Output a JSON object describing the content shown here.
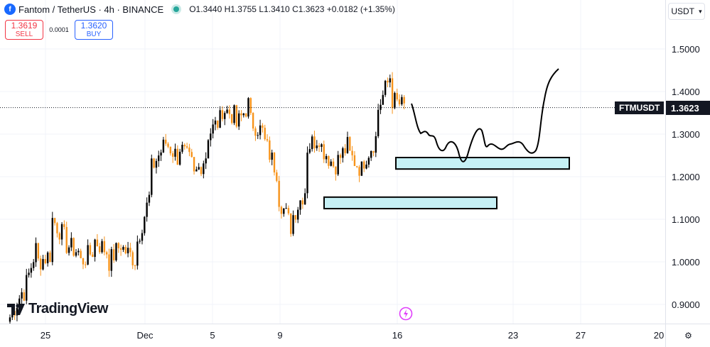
{
  "header": {
    "symbol_title": "Fantom / TetherUS · 4h · BINANCE",
    "logo_letter": "f",
    "ohlc": {
      "open": "O1.3440",
      "high": "H1.3755",
      "low": "L1.3410",
      "close": "C1.3623",
      "change": "+0.0182 (+1.35%)"
    }
  },
  "trade": {
    "sell_price": "1.3619",
    "sell_label": "SELL",
    "spread": "0.0001",
    "buy_price": "1.3620",
    "buy_label": "BUY"
  },
  "price_scale": {
    "currency": "USDT"
  },
  "last_price": {
    "symbol": "FTMUSDT",
    "value": "1.3623"
  },
  "branding": {
    "name": "TradingView"
  },
  "colors": {
    "up": "#000000",
    "down": "#f7931a",
    "zone_fill": "#c6f0f5",
    "accent": "#2962ff"
  },
  "chart_data": {
    "type": "candlestick",
    "symbol": "FTMUSDT",
    "interval": "4h",
    "y_ticks": [
      "1.5000",
      "1.4000",
      "1.3000",
      "1.2000",
      "1.1000",
      "1.0000",
      "0.9000"
    ],
    "y_range": [
      0.86,
      1.55
    ],
    "x_ticks": [
      "25",
      "Dec",
      "5",
      "9",
      "16",
      "23",
      "27",
      "20"
    ],
    "series_close_approx": [
      [
        0.87,
        0.94
      ],
      [
        0.93,
        1.05
      ],
      [
        1.0,
        1.02
      ],
      [
        1.1,
        1.05
      ],
      [
        1.04,
        1.02
      ],
      [
        1.0,
        1.03
      ],
      [
        1.05,
        1.02
      ],
      [
        1.0,
        1.05
      ],
      [
        1.03,
        1.0
      ],
      [
        1.05,
        1.17
      ],
      [
        1.22,
        1.28
      ],
      [
        1.28,
        1.24
      ],
      [
        1.27,
        1.22
      ],
      [
        1.2,
        1.26
      ],
      [
        1.3,
        1.34
      ],
      [
        1.36,
        1.34
      ],
      [
        1.32,
        1.38
      ],
      [
        1.33,
        1.3
      ],
      [
        1.28,
        1.2
      ],
      [
        1.15,
        1.07
      ],
      [
        1.11,
        1.18
      ],
      [
        1.27,
        1.3
      ],
      [
        1.27,
        1.22
      ],
      [
        1.23,
        1.28
      ],
      [
        1.25,
        1.21
      ],
      [
        1.24,
        1.3
      ],
      [
        1.36,
        1.45
      ],
      [
        1.38,
        1.36
      ]
    ],
    "last_price": 1.3623,
    "annotations": {
      "demand_zones": [
        [
          1.218,
          1.245
        ],
        [
          1.125,
          1.152
        ]
      ],
      "projected_path": "price dips to the upper zone then rallies toward 1.45"
    }
  }
}
